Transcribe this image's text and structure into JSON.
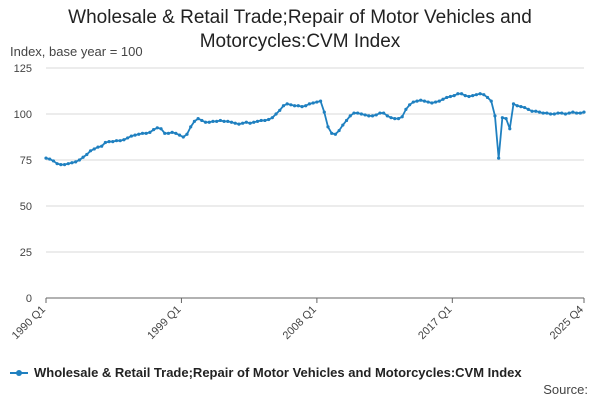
{
  "chart_data": {
    "type": "line",
    "title": "Wholesale & Retail Trade;Repair of Motor Vehicles and Motorcycles:CVM Index",
    "subtitle": "Index, base year = 100",
    "xlabel": "",
    "ylabel": "Index, base year = 100",
    "ylim": [
      0,
      125
    ],
    "yticks": [
      0,
      25,
      50,
      75,
      100,
      125
    ],
    "xtick_labels": [
      "1990 Q1",
      "1999 Q1",
      "2008 Q1",
      "2017 Q1",
      "2025 Q4"
    ],
    "x_start": "1990 Q1",
    "x_end": "2025 Q4",
    "grid": true,
    "legend_position": "bottom",
    "series_color": "#1f80c0",
    "series": [
      {
        "name": "Wholesale & Retail Trade;Repair of Motor Vehicles and Motorcycles:CVM Index",
        "values": [
          76,
          75.5,
          74.5,
          73,
          72.5,
          72.5,
          73,
          73.5,
          74,
          75,
          76.5,
          78,
          80,
          81,
          82,
          82.5,
          84.5,
          85,
          85,
          85.5,
          85.5,
          86,
          87,
          88,
          88.5,
          89,
          89.5,
          89.5,
          90,
          91.5,
          92.5,
          92,
          89.5,
          89.5,
          90,
          89.5,
          88.5,
          87.5,
          89,
          93,
          96,
          97.5,
          96.5,
          95.5,
          95.5,
          96,
          96,
          96.5,
          96,
          96,
          95.5,
          95,
          94.5,
          95,
          95.5,
          95,
          95.5,
          96,
          96.5,
          96.5,
          97,
          98,
          100,
          102,
          104.5,
          105.5,
          105,
          104.5,
          104.5,
          104,
          104.5,
          105.5,
          106,
          106.5,
          107,
          101,
          93,
          89.5,
          89,
          91,
          94,
          96.5,
          99,
          100.5,
          100.5,
          100,
          99.5,
          99,
          99,
          99.5,
          100.5,
          100.5,
          99,
          98,
          97.5,
          97.5,
          98.5,
          102.5,
          105,
          106.5,
          107,
          107.5,
          107,
          106.5,
          106,
          106.5,
          107,
          108,
          109,
          109.5,
          110,
          111,
          111,
          110,
          109.5,
          110,
          110.5,
          111,
          110.5,
          109,
          107,
          99,
          76,
          98,
          97.5,
          92,
          105.5,
          104.5,
          104,
          103.5,
          102.5,
          101.5,
          101.5,
          101,
          100.5,
          100.5,
          100,
          100,
          100.5,
          100.5,
          100,
          100.5,
          101,
          100.5,
          100.5,
          101
        ]
      }
    ]
  },
  "source_label": "Source:"
}
